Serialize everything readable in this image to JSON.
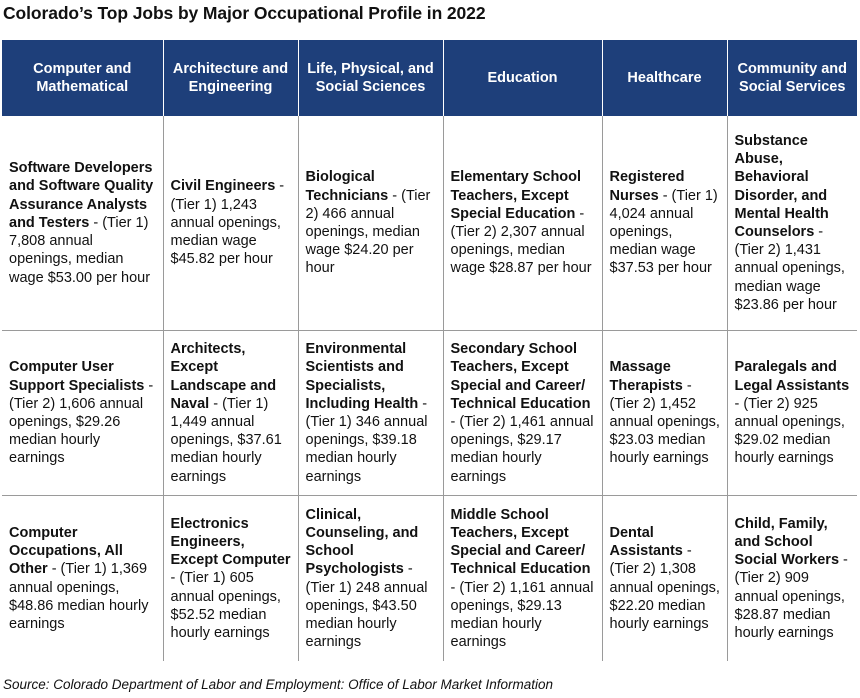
{
  "title": "Colorado’s Top Jobs by Major Occupational Profile in 2022",
  "columns": [
    "Computer and Mathematical",
    "Architecture and Engineering",
    "Life, Physical, and Social Sciences",
    "Education",
    "Healthcare",
    "Community and Social Services"
  ],
  "rows": [
    [
      {
        "job": "Software Developers and Software Quality Assurance Analysts and Testers",
        "detail": " - (Tier 1) 7,808 annual openings, median wage $53.00 per hour"
      },
      {
        "job": "Civil Engineers",
        "detail": " - (Tier 1) 1,243 annual openings, median wage $45.82 per hour"
      },
      {
        "job": "Biological Technicians",
        "detail": " - (Tier 2) 466 annual openings, median wage $24.20 per hour"
      },
      {
        "job": "Elementary School Teachers, Except Special Education",
        "detail": " - (Tier 2) 2,307 annual openings, median wage $28.87 per hour"
      },
      {
        "job": "Registered Nurses",
        "detail": " - (Tier 1) 4,024 annual openings, median wage $37.53 per hour"
      },
      {
        "job": "Substance Abuse, Behavioral Disorder, and Mental Health Counselors",
        "detail": " - (Tier 2) 1,431 annual openings, median wage $23.86 per hour"
      }
    ],
    [
      {
        "job": "Computer User Support Specialists",
        "detail": " - (Tier 2) 1,606 annual openings, $29.26 median hourly earnings"
      },
      {
        "job": "Architects, Except Landscape and Naval",
        "detail": " - (Tier 1) 1,449 annual openings, $37.61 median hourly earnings"
      },
      {
        "job": "Environmental Scientists and Specialists, Including Health",
        "detail": " - (Tier 1) 346 annual openings, $39.18 median hourly earnings"
      },
      {
        "job": "Secondary School Teachers, Except Special and Career/ Technical Education",
        "detail": " - (Tier 2) 1,461 annual openings, $29.17 median hourly earnings"
      },
      {
        "job": "Massage Therapists",
        "detail": " - (Tier 2) 1,452 annual openings, $23.03 median hourly earnings"
      },
      {
        "job": "Paralegals and Legal Assistants",
        "detail": " - (Tier 2) 925 annual openings, $29.02 median hourly earnings"
      }
    ],
    [
      {
        "job": "Computer Occupations, All Other",
        "detail": " - (Tier 1) 1,369 annual openings, $48.86 median hourly earnings"
      },
      {
        "job": "Electronics Engineers, Except Computer",
        "detail": " - (Tier 1) 605 annual openings, $52.52 median hourly earnings"
      },
      {
        "job": "Clinical, Counseling, and School Psychologists",
        "detail": " - (Tier 1) 248 annual openings, $43.50 median hourly earnings"
      },
      {
        "job": "Middle School Teachers, Except Special and Career/ Technical Education",
        "detail": " - (Tier 2) 1,161 annual openings, $29.13 median hourly earnings"
      },
      {
        "job": "Dental Assistants",
        "detail": " - (Tier 2) 1,308 annual openings, $22.20 median hourly earnings"
      },
      {
        "job": "Child, Family, and School Social Workers",
        "detail": " - (Tier 2) 909 annual openings, $28.87 median hourly earnings"
      }
    ]
  ],
  "source": "Source: Colorado Department of Labor and Employment: Office of Labor Market Information"
}
